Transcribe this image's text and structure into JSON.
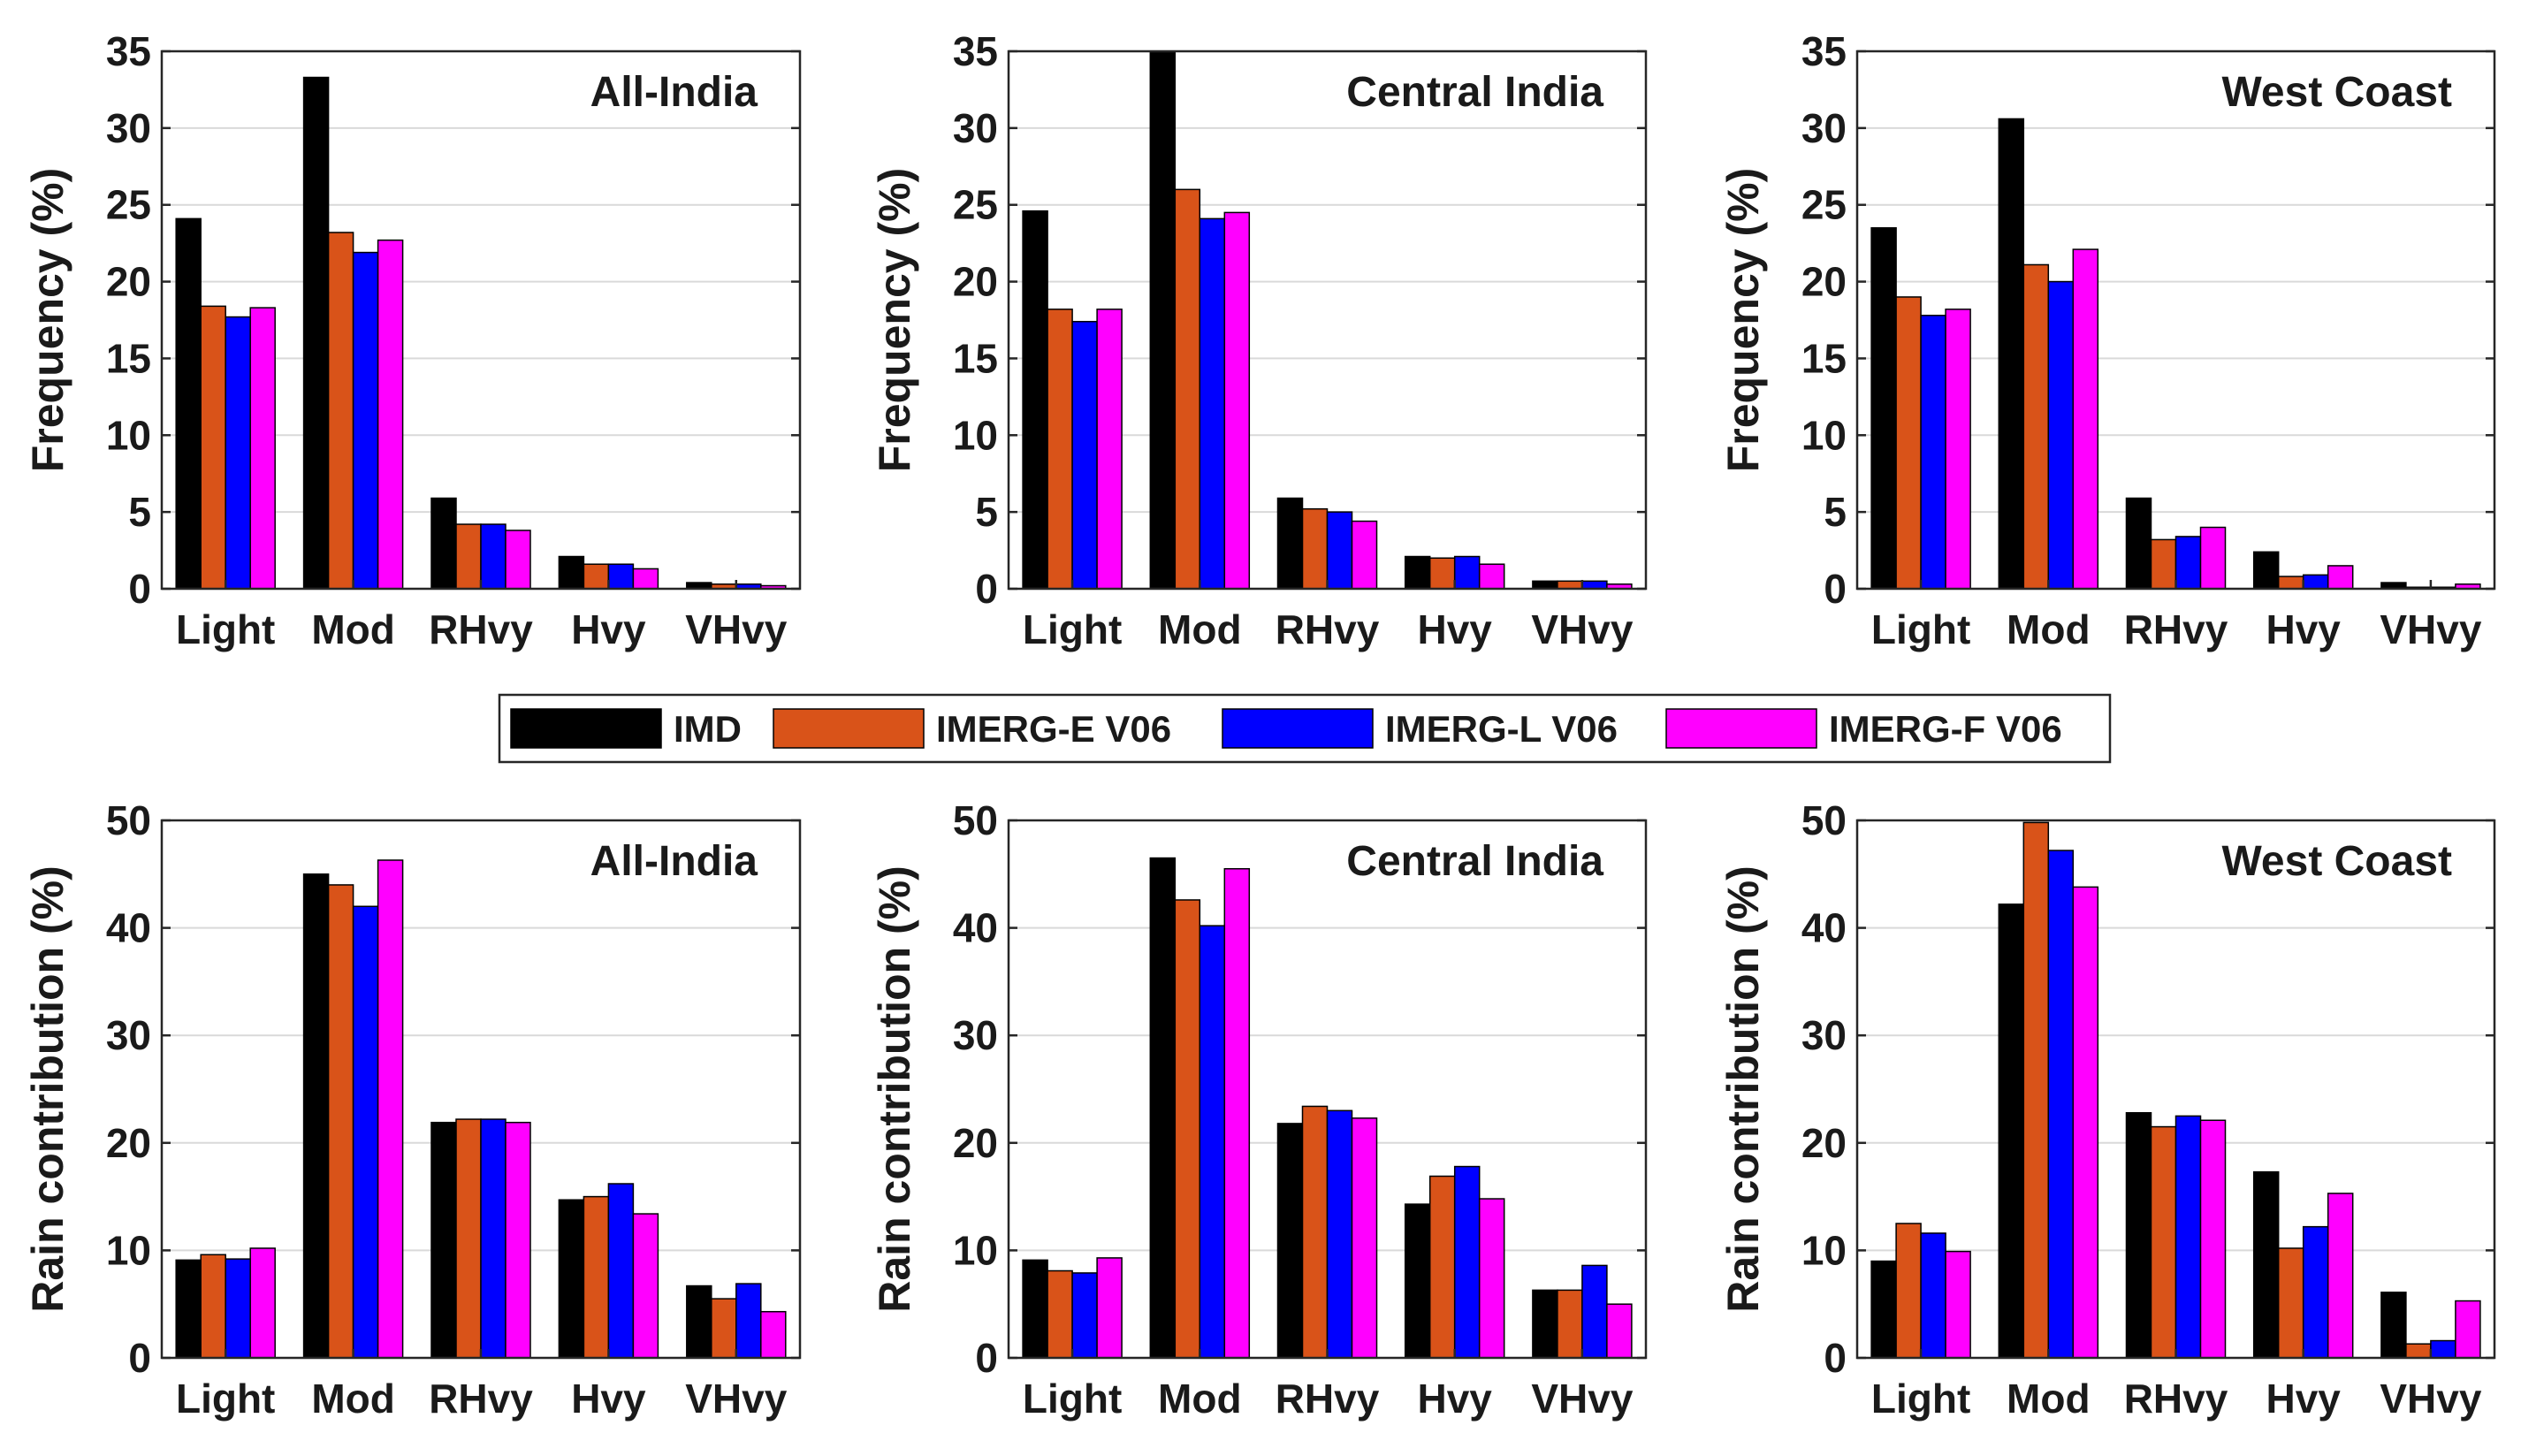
{
  "legend": {
    "entries": [
      "IMD",
      "IMERG-E V06",
      "IMERG-L V06",
      "IMERG-F V06"
    ],
    "placement": "center"
  },
  "colors": {
    "IMD": "#000000",
    "IMERG-E V06": "#D95319",
    "IMERG-L V06": "#0000FF",
    "IMERG-F V06": "#FF00FF"
  },
  "chart_data": [
    {
      "type": "bar",
      "title": "All-India",
      "ylabel": "Frequency (%)",
      "ylim": [
        0,
        35
      ],
      "yticks": [
        0,
        5,
        10,
        15,
        20,
        25,
        30,
        35
      ],
      "categories": [
        "Light",
        "Mod",
        "RHvy",
        "Hvy",
        "VHvy"
      ],
      "series": [
        {
          "name": "IMD",
          "values": [
            24.1,
            33.3,
            5.9,
            2.1,
            0.4
          ]
        },
        {
          "name": "IMERG-E V06",
          "values": [
            18.4,
            23.2,
            4.2,
            1.6,
            0.3
          ]
        },
        {
          "name": "IMERG-L V06",
          "values": [
            17.7,
            21.9,
            4.2,
            1.6,
            0.3
          ]
        },
        {
          "name": "IMERG-F V06",
          "values": [
            18.3,
            22.7,
            3.8,
            1.3,
            0.2
          ]
        }
      ]
    },
    {
      "type": "bar",
      "title": "Central India",
      "ylabel": "Frequency (%)",
      "ylim": [
        0,
        35
      ],
      "yticks": [
        0,
        5,
        10,
        15,
        20,
        25,
        30,
        35
      ],
      "categories": [
        "Light",
        "Mod",
        "RHvy",
        "Hvy",
        "VHvy"
      ],
      "series": [
        {
          "name": "IMD",
          "values": [
            24.6,
            35.0,
            5.9,
            2.1,
            0.5
          ]
        },
        {
          "name": "IMERG-E V06",
          "values": [
            18.2,
            26.0,
            5.2,
            2.0,
            0.5
          ]
        },
        {
          "name": "IMERG-L V06",
          "values": [
            17.4,
            24.1,
            5.0,
            2.1,
            0.5
          ]
        },
        {
          "name": "IMERG-F V06",
          "values": [
            18.2,
            24.5,
            4.4,
            1.6,
            0.3
          ]
        }
      ]
    },
    {
      "type": "bar",
      "title": "West Coast",
      "ylabel": "Frequency (%)",
      "ylim": [
        0,
        35
      ],
      "yticks": [
        0,
        5,
        10,
        15,
        20,
        25,
        30,
        35
      ],
      "categories": [
        "Light",
        "Mod",
        "RHvy",
        "Hvy",
        "VHvy"
      ],
      "series": [
        {
          "name": "IMD",
          "values": [
            23.5,
            30.6,
            5.9,
            2.4,
            0.4
          ]
        },
        {
          "name": "IMERG-E V06",
          "values": [
            19.0,
            21.1,
            3.2,
            0.8,
            0.1
          ]
        },
        {
          "name": "IMERG-L V06",
          "values": [
            17.8,
            20.0,
            3.4,
            0.9,
            0.1
          ]
        },
        {
          "name": "IMERG-F V06",
          "values": [
            18.2,
            22.1,
            4.0,
            1.5,
            0.3
          ]
        }
      ]
    },
    {
      "type": "bar",
      "title": "All-India",
      "ylabel": "Rain contribution (%)",
      "ylim": [
        0,
        50
      ],
      "yticks": [
        0,
        10,
        20,
        30,
        40,
        50
      ],
      "categories": [
        "Light",
        "Mod",
        "RHvy",
        "Hvy",
        "VHvy"
      ],
      "series": [
        {
          "name": "IMD",
          "values": [
            9.1,
            45.0,
            21.9,
            14.7,
            6.7
          ]
        },
        {
          "name": "IMERG-E V06",
          "values": [
            9.6,
            44.0,
            22.2,
            15.0,
            5.5
          ]
        },
        {
          "name": "IMERG-L V06",
          "values": [
            9.2,
            42.0,
            22.2,
            16.2,
            6.9
          ]
        },
        {
          "name": "IMERG-F V06",
          "values": [
            10.2,
            46.3,
            21.9,
            13.4,
            4.3
          ]
        }
      ]
    },
    {
      "type": "bar",
      "title": "Central India",
      "ylabel": "Rain contribution (%)",
      "ylim": [
        0,
        50
      ],
      "yticks": [
        0,
        10,
        20,
        30,
        40,
        50
      ],
      "categories": [
        "Light",
        "Mod",
        "RHvy",
        "Hvy",
        "VHvy"
      ],
      "series": [
        {
          "name": "IMD",
          "values": [
            9.1,
            46.5,
            21.8,
            14.3,
            6.3
          ]
        },
        {
          "name": "IMERG-E V06",
          "values": [
            8.1,
            42.6,
            23.4,
            16.9,
            6.3
          ]
        },
        {
          "name": "IMERG-L V06",
          "values": [
            7.9,
            40.2,
            23.0,
            17.8,
            8.6
          ]
        },
        {
          "name": "IMERG-F V06",
          "values": [
            9.3,
            45.5,
            22.3,
            14.8,
            5.0
          ]
        }
      ]
    },
    {
      "type": "bar",
      "title": "West Coast",
      "ylabel": "Rain contribution (%)",
      "ylim": [
        0,
        50
      ],
      "yticks": [
        0,
        10,
        20,
        30,
        40,
        50
      ],
      "categories": [
        "Light",
        "Mod",
        "RHvy",
        "Hvy",
        "VHvy"
      ],
      "series": [
        {
          "name": "IMD",
          "values": [
            9.0,
            42.2,
            22.8,
            17.3,
            6.1
          ]
        },
        {
          "name": "IMERG-E V06",
          "values": [
            12.5,
            49.8,
            21.5,
            10.2,
            1.3
          ]
        },
        {
          "name": "IMERG-L V06",
          "values": [
            11.6,
            47.2,
            22.5,
            12.2,
            1.6
          ]
        },
        {
          "name": "IMERG-F V06",
          "values": [
            9.9,
            43.8,
            22.1,
            15.3,
            5.3
          ]
        }
      ]
    }
  ]
}
